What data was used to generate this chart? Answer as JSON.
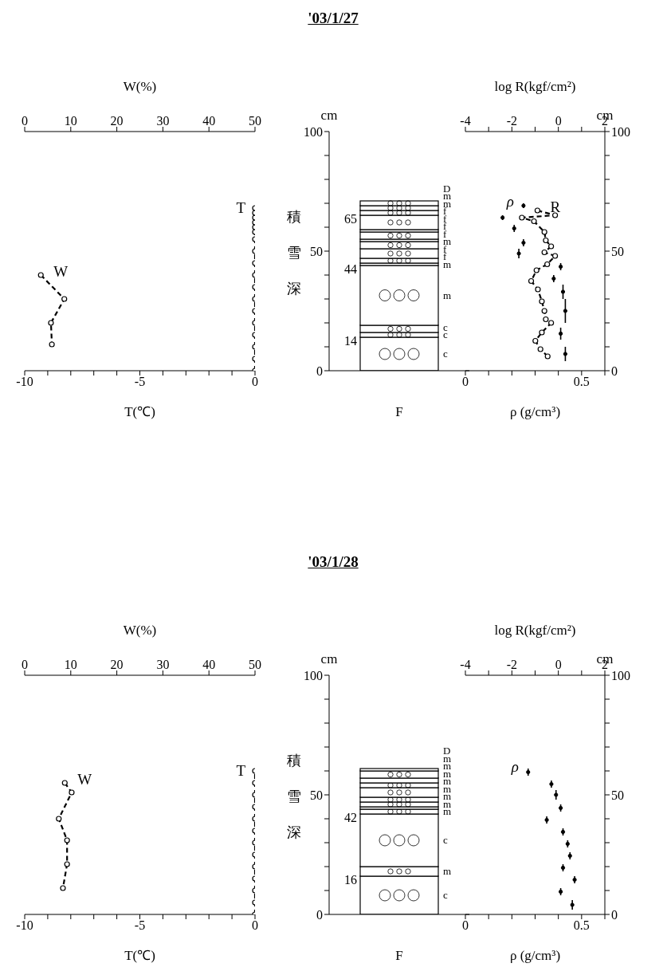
{
  "chart_data": [
    {
      "type": "line",
      "xlabel": "T(℃)",
      "x2label": "W(%)",
      "xlim": [
        -10,
        0
      ],
      "xticks": [
        -10,
        {
          "value": -9,
          "label": null
        },
        {
          "value": -8,
          "label": null
        },
        {
          "value": -7,
          "label": null
        },
        {
          "value": -6,
          "label": null
        },
        -5,
        {
          "value": -4,
          "label": null
        },
        {
          "value": -3,
          "label": null
        },
        {
          "value": -2,
          "label": null
        },
        {
          "value": -1,
          "label": null
        },
        0
      ],
      "x2lim": [
        0,
        50
      ],
      "x2ticks": [
        0,
        10,
        20,
        30,
        40,
        50
      ],
      "ylim": [
        0,
        100
      ],
      "tick_labels": "x",
      "series": [
        {
          "name": "T",
          "color": "#000000",
          "marker": "circle",
          "line_style": "dashed",
          "x": [
            0,
            0,
            0,
            0,
            0,
            0,
            0,
            0,
            0,
            0,
            0,
            0,
            0,
            0,
            0,
            0,
            0,
            0
          ],
          "values": [
            0,
            5,
            10,
            15,
            20,
            25,
            30,
            35,
            40,
            45,
            50,
            55,
            58,
            60,
            62,
            64,
            66,
            68
          ]
        },
        {
          "name": "W",
          "color": "#000000",
          "marker": "circle",
          "line_style": "dashed",
          "axis": "x2",
          "x": [
            3.5,
            8.6,
            5.7,
            5.9
          ],
          "values": [
            40,
            30,
            20,
            11
          ]
        }
      ]
    },
    {
      "type": "bar",
      "title": "'03/1/27",
      "stacked": true,
      "xlabel": "F",
      "ylabel": "積雪深",
      "categories": [
        null
      ],
      "ylim": [
        0,
        100
      ],
      "yticks": [
        0,
        {
          "value": 10,
          "label": null
        },
        {
          "value": 20,
          "label": null
        },
        {
          "value": 30,
          "label": null
        },
        {
          "value": 40,
          "label": null
        },
        50,
        {
          "value": 60,
          "label": null
        },
        {
          "value": 70,
          "label": null
        },
        {
          "value": 80,
          "label": null
        },
        {
          "value": 90,
          "label": null
        },
        100
      ],
      "annotations": [
        "cm",
        "65",
        "44",
        "14"
      ],
      "series": [
        {
          "color": "#ffffff",
          "values": [
            14
          ],
          "value_labels": [
            "c"
          ]
        },
        {
          "color": "#ffffff",
          "values": [
            2
          ],
          "value_labels": [
            "c"
          ]
        },
        {
          "color": "#ffffff",
          "values": [
            3
          ],
          "value_labels": [
            "c"
          ]
        },
        {
          "color": "#ffffff",
          "values": [
            25
          ],
          "value_labels": [
            "m"
          ]
        },
        {
          "color": "#ffffff",
          "values": [
            1
          ],
          "value_labels": [
            "m"
          ]
        },
        {
          "color": "#ffffff",
          "values": [
            2
          ],
          "value_labels": [
            "f"
          ]
        },
        {
          "color": "#ffffff",
          "values": [
            4
          ],
          "value_labels": [
            "f"
          ]
        },
        {
          "color": "#ffffff",
          "values": [
            3
          ],
          "value_labels": [
            "m"
          ]
        },
        {
          "color": "#ffffff",
          "values": [
            1
          ],
          "value_labels": [
            "f"
          ]
        },
        {
          "color": "#ffffff",
          "values": [
            3
          ],
          "value_labels": [
            "f"
          ]
        },
        {
          "color": "#ffffff",
          "values": [
            1
          ],
          "value_labels": [
            "f"
          ]
        },
        {
          "color": "#ffffff",
          "values": [
            6
          ],
          "value_labels": [
            "f"
          ]
        },
        {
          "color": "#ffffff",
          "values": [
            2
          ],
          "value_labels": [
            "m"
          ]
        },
        {
          "color": "#ffffff",
          "values": [
            2
          ],
          "value_labels": [
            "m"
          ]
        },
        {
          "color": "#ffffff",
          "values": [
            2
          ],
          "value_labels": [
            "D"
          ]
        }
      ]
    },
    {
      "type": "line",
      "xlabel": "ρ (g/cm³)",
      "x2label": "log R(kgf/cm²)",
      "xlim": [
        0,
        0.6
      ],
      "xticks": [
        0,
        {
          "value": 0.1,
          "label": null
        },
        {
          "value": 0.2,
          "label": null
        },
        {
          "value": 0.3,
          "label": null
        },
        {
          "value": 0.4,
          "label": null
        },
        0.5,
        {
          "value": 0.6,
          "label": null
        }
      ],
      "x2lim": [
        -4,
        2
      ],
      "x2ticks": [
        -4,
        {
          "value": -3,
          "label": null
        },
        -2,
        {
          "value": -1,
          "label": null
        },
        0,
        {
          "value": 1,
          "label": null
        },
        2
      ],
      "ylim": [
        0,
        100
      ],
      "yticks": [
        0,
        {
          "value": 10,
          "label": null
        },
        {
          "value": 20,
          "label": null
        },
        {
          "value": 30,
          "label": null
        },
        {
          "value": 40,
          "label": null
        },
        50,
        {
          "value": 60,
          "label": null
        },
        {
          "value": 70,
          "label": null
        },
        {
          "value": 80,
          "label": null
        },
        {
          "value": 90,
          "label": null
        },
        100
      ],
      "annotations": [
        "cm"
      ],
      "series": [
        {
          "name": "ρ",
          "type": "scatter",
          "color": "#000000",
          "x": [
            0.25,
            0.16,
            0.21,
            0.25,
            0.23,
            0.41,
            0.38,
            0.42,
            0.43,
            0.41,
            0.43
          ],
          "values": [
            69,
            64,
            59.5,
            53.5,
            49,
            43.5,
            38.5,
            33,
            25,
            15.5,
            7
          ],
          "errors": [
            [
              68,
              70
            ],
            [
              63,
              65
            ],
            [
              58,
              61
            ],
            [
              52,
              55
            ],
            [
              47,
              51
            ],
            [
              42,
              45
            ],
            [
              37,
              40
            ],
            [
              30,
              36
            ],
            [
              20,
              30
            ],
            [
              13,
              18
            ],
            [
              4,
              10
            ]
          ]
        },
        {
          "name": "R",
          "color": "#000000",
          "marker": "circle",
          "line_style": "dashed",
          "axis": "x2",
          "x": [
            -0.9,
            -0.14,
            -1.57,
            -1.05,
            -0.6,
            -0.54,
            -0.31,
            -0.6,
            -0.14,
            -0.48,
            -0.94,
            -1.17,
            -0.88,
            -0.71,
            -0.6,
            -0.54,
            -0.31,
            -0.71,
            -0.99,
            -0.77,
            -0.46
          ],
          "values": [
            67,
            65,
            64,
            62.5,
            58,
            54.5,
            52,
            49.5,
            48,
            44.5,
            42,
            37.5,
            34,
            29,
            25,
            21.5,
            20,
            16,
            12.5,
            9,
            6
          ]
        }
      ]
    },
    {
      "type": "line",
      "xlabel": "T(℃)",
      "x2label": "W(%)",
      "xlim": [
        -10,
        0
      ],
      "xticks": [
        -10,
        {
          "value": -9,
          "label": null
        },
        {
          "value": -8,
          "label": null
        },
        {
          "value": -7,
          "label": null
        },
        {
          "value": -6,
          "label": null
        },
        -5,
        {
          "value": -4,
          "label": null
        },
        {
          "value": -3,
          "label": null
        },
        {
          "value": -2,
          "label": null
        },
        {
          "value": -1,
          "label": null
        },
        0
      ],
      "x2lim": [
        0,
        50
      ],
      "x2ticks": [
        0,
        10,
        20,
        30,
        40,
        50
      ],
      "ylim": [
        0,
        100
      ],
      "tick_labels": "x",
      "series": [
        {
          "name": "T",
          "color": "#000000",
          "marker": "circle",
          "line_style": "dashed",
          "x": [
            0,
            0,
            0,
            0,
            0,
            0,
            0,
            0,
            0,
            0,
            0,
            0,
            0
          ],
          "values": [
            0,
            5,
            10,
            15,
            20,
            25,
            30,
            35,
            40,
            45,
            50,
            55,
            60
          ]
        },
        {
          "name": "W",
          "color": "#000000",
          "marker": "circle",
          "line_style": "dashed",
          "axis": "x2",
          "x": [
            8.7,
            10.2,
            7.4,
            9.2,
            9.2,
            8.3
          ],
          "values": [
            55,
            51,
            40,
            31,
            21,
            11
          ]
        }
      ]
    },
    {
      "type": "bar",
      "title": "'03/1/28",
      "stacked": true,
      "xlabel": "F",
      "ylabel": "積雪深",
      "categories": [
        null
      ],
      "ylim": [
        0,
        100
      ],
      "yticks": [
        0,
        {
          "value": 10,
          "label": null
        },
        {
          "value": 20,
          "label": null
        },
        {
          "value": 30,
          "label": null
        },
        {
          "value": 40,
          "label": null
        },
        50,
        {
          "value": 60,
          "label": null
        },
        {
          "value": 70,
          "label": null
        },
        {
          "value": 80,
          "label": null
        },
        {
          "value": 90,
          "label": null
        },
        100
      ],
      "annotations": [
        "cm",
        "42",
        "16"
      ],
      "series": [
        {
          "color": "#ffffff",
          "values": [
            16
          ],
          "value_labels": [
            "c"
          ]
        },
        {
          "color": "#ffffff",
          "values": [
            4
          ],
          "value_labels": [
            "m"
          ]
        },
        {
          "color": "#ffffff",
          "values": [
            22
          ],
          "value_labels": [
            "c"
          ]
        },
        {
          "color": "#ffffff",
          "values": [
            2
          ],
          "value_labels": [
            "m"
          ]
        },
        {
          "color": "#ffffff",
          "values": [
            1
          ],
          "value_labels": [
            "m"
          ]
        },
        {
          "color": "#ffffff",
          "values": [
            2
          ],
          "value_labels": [
            "m"
          ]
        },
        {
          "color": "#ffffff",
          "values": [
            2
          ],
          "value_labels": [
            "m"
          ]
        },
        {
          "color": "#ffffff",
          "values": [
            4
          ],
          "value_labels": [
            "m"
          ]
        },
        {
          "color": "#ffffff",
          "values": [
            2
          ],
          "value_labels": [
            "m"
          ]
        },
        {
          "color": "#ffffff",
          "values": [
            2
          ],
          "value_labels": [
            "m"
          ]
        },
        {
          "color": "#ffffff",
          "values": [
            3
          ],
          "value_labels": [
            "m"
          ]
        },
        {
          "color": "#ffffff",
          "values": [
            1
          ],
          "value_labels": [
            "D"
          ]
        }
      ]
    },
    {
      "type": "line",
      "xlabel": "ρ (g/cm³)",
      "x2label": "log R(kgf/cm²)",
      "xlim": [
        0,
        0.6
      ],
      "xticks": [
        0,
        {
          "value": 0.1,
          "label": null
        },
        {
          "value": 0.2,
          "label": null
        },
        {
          "value": 0.3,
          "label": null
        },
        {
          "value": 0.4,
          "label": null
        },
        0.5,
        {
          "value": 0.6,
          "label": null
        }
      ],
      "x2lim": [
        -4,
        2
      ],
      "x2ticks": [
        -4,
        {
          "value": -3,
          "label": null
        },
        -2,
        {
          "value": -1,
          "label": null
        },
        0,
        {
          "value": 1,
          "label": null
        },
        2
      ],
      "ylim": [
        0,
        100
      ],
      "yticks": [
        0,
        {
          "value": 10,
          "label": null
        },
        {
          "value": 20,
          "label": null
        },
        {
          "value": 30,
          "label": null
        },
        {
          "value": 40,
          "label": null
        },
        50,
        {
          "value": 60,
          "label": null
        },
        {
          "value": 70,
          "label": null
        },
        {
          "value": 80,
          "label": null
        },
        {
          "value": 90,
          "label": null
        },
        100
      ],
      "annotations": [
        "cm"
      ],
      "series": [
        {
          "name": "ρ",
          "type": "scatter",
          "color": "#000000",
          "x": [
            0.27,
            0.37,
            0.39,
            0.41,
            0.35,
            0.42,
            0.44,
            0.45,
            0.42,
            0.47,
            0.41,
            0.46
          ],
          "values": [
            59.5,
            54.5,
            50,
            44.5,
            39.5,
            34.5,
            29.5,
            24.5,
            19.5,
            14.5,
            9.5,
            4
          ],
          "errors": [
            [
              58,
              61
            ],
            [
              53,
              56
            ],
            [
              48,
              52
            ],
            [
              43,
              46
            ],
            [
              38,
              41
            ],
            [
              33,
              36
            ],
            [
              28,
              31
            ],
            [
              23,
              26
            ],
            [
              18,
              21
            ],
            [
              13,
              16
            ],
            [
              8,
              11
            ],
            [
              2,
              6
            ]
          ]
        }
      ]
    }
  ]
}
